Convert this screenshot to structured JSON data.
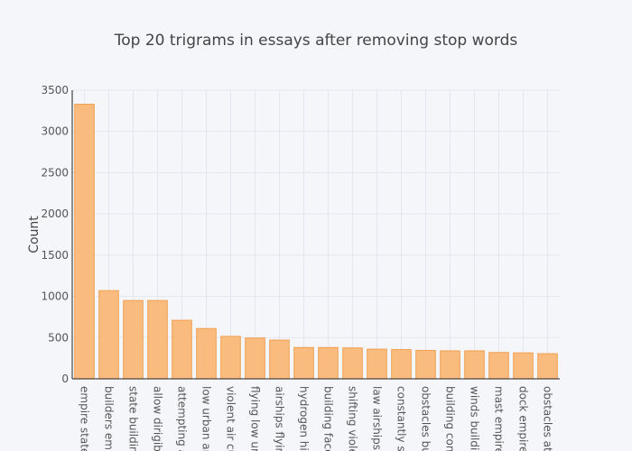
{
  "chart_data": {
    "type": "bar",
    "title": "Top 20 trigrams in essays after removing stop words",
    "y_label": "Count",
    "categories": [
      "empire state",
      "builders emp",
      "state buildin",
      "allow dirigibl",
      "attempting a",
      "low urban ar",
      "violent air cu",
      "flying low urb",
      "airships flyin",
      "hydrogen hig",
      "building face",
      "shifting viole",
      "law airships t",
      "constantly sh",
      "obstacles bu",
      "building con",
      "winds buildin",
      "mast empire",
      "dock empire",
      "obstacles att"
    ],
    "values": [
      3330,
      1070,
      950,
      950,
      710,
      610,
      515,
      495,
      470,
      380,
      380,
      375,
      360,
      355,
      345,
      340,
      340,
      320,
      315,
      305
    ],
    "color": "#f9bb7e",
    "ylim": [
      0,
      3500
    ],
    "yticks": [
      0,
      500,
      1000,
      1500,
      2000,
      2500,
      3000,
      3500
    ],
    "grid": true
  }
}
